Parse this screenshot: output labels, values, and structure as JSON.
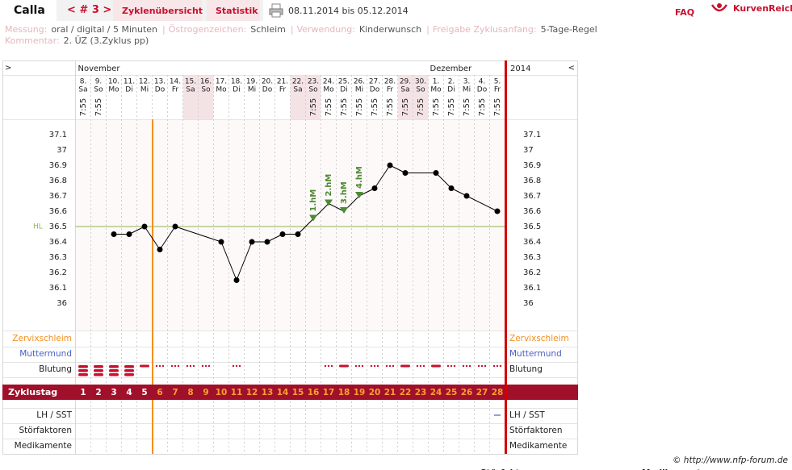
{
  "header": {
    "name": "Calla",
    "cycle_nav": "< # 3 >",
    "tabs": [
      "Zyklenübersicht",
      "Statistik"
    ],
    "date_range": "08.11.2014 bis 05.12.2014",
    "faq": "FAQ",
    "brand": "KurvenReich"
  },
  "info": {
    "fields": [
      {
        "label": "Messung:",
        "value": "oral / digital / 5 Minuten"
      },
      {
        "label": "Östrogenzeichen:",
        "value": "Schleim"
      },
      {
        "label": "Verwendung:",
        "value": "Kinderwunsch"
      },
      {
        "label": "Freigabe Zyklusanfang:",
        "value": "5-Tage-Regel"
      }
    ],
    "separator": "|",
    "comment_label": "Kommentar:",
    "comment": "2. ÜZ (3.Zyklus pp)"
  },
  "chart_data": {
    "type": "line",
    "nav_left": ">",
    "nav_right": "<",
    "months": [
      "November",
      "Dezember"
    ],
    "year": "2014",
    "categories": [
      "8.",
      "9.",
      "10.",
      "11.",
      "12.",
      "13.",
      "14.",
      "15.",
      "16.",
      "17.",
      "18.",
      "19.",
      "20.",
      "21.",
      "22.",
      "23.",
      "24.",
      "25.",
      "26.",
      "27.",
      "28.",
      "29.",
      "30.",
      "1.",
      "2.",
      "3.",
      "4.",
      "5."
    ],
    "weekdays": [
      "Sa",
      "So",
      "Mo",
      "Di",
      "Mi",
      "Do",
      "Fr",
      "Sa",
      "So",
      "Mo",
      "Di",
      "Mi",
      "Do",
      "Fr",
      "Sa",
      "So",
      "Mo",
      "Di",
      "Mi",
      "Do",
      "Fr",
      "Sa",
      "So",
      "Mo",
      "Di",
      "Mi",
      "Do",
      "Fr"
    ],
    "times": [
      "7:55",
      "7:55",
      null,
      null,
      null,
      null,
      null,
      null,
      null,
      null,
      null,
      null,
      null,
      null,
      null,
      "7:55",
      "7:55",
      "7:55",
      "7:55",
      "7:55",
      "7:55",
      "7:55",
      "7:55",
      "7:55",
      "7:55",
      "7:55",
      "7:55",
      "7:55"
    ],
    "values": [
      null,
      null,
      36.45,
      36.45,
      36.5,
      36.35,
      36.5,
      null,
      null,
      36.4,
      36.15,
      36.4,
      36.4,
      36.45,
      36.45,
      36.55,
      36.65,
      36.6,
      36.7,
      36.75,
      36.9,
      36.85,
      null,
      36.85,
      36.75,
      36.7,
      null,
      36.6
    ],
    "color": "#000000",
    "hm_labels": [
      null,
      null,
      null,
      null,
      null,
      null,
      null,
      null,
      null,
      null,
      null,
      null,
      null,
      null,
      null,
      "1.hM",
      "2.hM",
      "3.hM",
      "4.hM",
      null,
      null,
      null,
      null,
      null,
      null,
      null,
      null,
      null
    ],
    "hm_color": "#4e8a34",
    "cover_line": 36.5,
    "cover_line_label": "HL",
    "cover_line_color": "#8db34e",
    "ylim": [
      35.8,
      37.2
    ],
    "yticks": [
      37.1,
      37,
      36.9,
      36.8,
      36.7,
      36.6,
      36.5,
      36.4,
      36.3,
      36.2,
      36.1,
      36
    ],
    "row_labels": [
      "Zervixschleim",
      "Muttermund",
      "Blutung",
      "Zyklustag",
      "LH / SST",
      "Störfaktoren",
      "Medikamente"
    ],
    "cycle_days": [
      1,
      2,
      3,
      4,
      5,
      6,
      7,
      8,
      9,
      10,
      11,
      12,
      13,
      14,
      15,
      16,
      17,
      18,
      19,
      20,
      21,
      22,
      23,
      24,
      25,
      26,
      27,
      28
    ],
    "bleeding": [
      3,
      3,
      3,
      3,
      2,
      1,
      1,
      1,
      1,
      0,
      1,
      0,
      0,
      0,
      0,
      0,
      1,
      2,
      1,
      1,
      1,
      2,
      1,
      2,
      1,
      1,
      1,
      1
    ],
    "lh_sst": [
      null,
      null,
      null,
      null,
      null,
      null,
      null,
      null,
      null,
      null,
      null,
      null,
      null,
      null,
      null,
      null,
      null,
      null,
      null,
      null,
      null,
      null,
      null,
      null,
      null,
      null,
      null,
      1
    ]
  },
  "footer": "© http://www.nfp-forum.de",
  "cut_off": [
    "Störfaktoren",
    "Medikamente"
  ]
}
